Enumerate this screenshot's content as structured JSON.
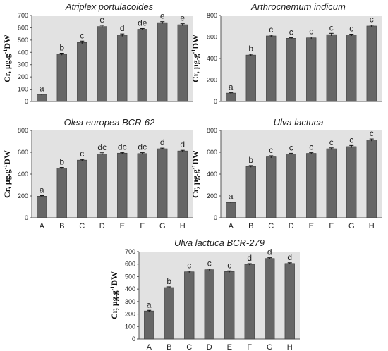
{
  "figure": {
    "ylabel_main": "Cr, μg.g",
    "ylabel_sup": "-1",
    "ylabel_tail": "DW"
  },
  "chart_data": [
    {
      "type": "bar",
      "title": "Atriplex portulacoides",
      "categories": [
        "A",
        "B",
        "C",
        "D",
        "E",
        "F",
        "G",
        "H"
      ],
      "values": [
        55,
        385,
        480,
        610,
        540,
        588,
        642,
        625
      ],
      "errors": [
        5,
        8,
        12,
        10,
        10,
        6,
        8,
        8
      ],
      "sig_labels": [
        "a",
        "b",
        "c",
        "e",
        "d",
        "de",
        "e",
        "e"
      ],
      "ylim": [
        0,
        700
      ],
      "yticks": [
        0,
        100,
        200,
        300,
        400,
        500,
        600,
        700
      ],
      "show_xticklabels": false,
      "color": "#666666",
      "plot_bg": "#e2e2e2"
    },
    {
      "type": "bar",
      "title": "Arthrocnemum indicum",
      "categories": [
        "A",
        "B",
        "C",
        "D",
        "E",
        "F",
        "G",
        "H"
      ],
      "values": [
        78,
        432,
        610,
        588,
        592,
        622,
        618,
        702
      ],
      "errors": [
        5,
        8,
        8,
        6,
        8,
        12,
        8,
        8
      ],
      "sig_labels": [
        "a",
        "b",
        "c",
        "c",
        "c",
        "c",
        "c",
        "c"
      ],
      "ylim": [
        0,
        800
      ],
      "yticks": [
        0,
        200,
        400,
        600,
        800
      ],
      "show_xticklabels": false,
      "color": "#666666",
      "plot_bg": "#e2e2e2"
    },
    {
      "type": "bar",
      "title": "Olea europea BCR-62",
      "categories": [
        "A",
        "B",
        "C",
        "D",
        "E",
        "F",
        "G",
        "H"
      ],
      "values": [
        198,
        455,
        528,
        585,
        592,
        588,
        632,
        612
      ],
      "errors": [
        5,
        6,
        6,
        10,
        6,
        8,
        6,
        6
      ],
      "sig_labels": [
        "a",
        "b",
        "c",
        "dc",
        "dc",
        "dc",
        "d",
        "d"
      ],
      "ylim": [
        0,
        800
      ],
      "yticks": [
        0,
        200,
        400,
        600,
        800
      ],
      "show_xticklabels": true,
      "color": "#666666",
      "plot_bg": "#e2e2e2"
    },
    {
      "type": "bar",
      "title": "Ulva lactuca",
      "categories": [
        "A",
        "B",
        "C",
        "D",
        "E",
        "F",
        "G",
        "H"
      ],
      "values": [
        140,
        470,
        558,
        585,
        590,
        632,
        652,
        712
      ],
      "errors": [
        5,
        8,
        10,
        6,
        6,
        8,
        10,
        10
      ],
      "sig_labels": [
        "a",
        "b",
        "c",
        "c",
        "c",
        "c",
        "c",
        "c"
      ],
      "ylim": [
        0,
        800
      ],
      "yticks": [
        0,
        200,
        400,
        600,
        800
      ],
      "show_xticklabels": true,
      "color": "#666666",
      "plot_bg": "#e2e2e2"
    },
    {
      "type": "bar",
      "title": "Ulva lactuca BCR-279",
      "categories": [
        "A",
        "B",
        "C",
        "D",
        "E",
        "F",
        "G",
        "H"
      ],
      "values": [
        225,
        412,
        538,
        555,
        540,
        598,
        645,
        605
      ],
      "errors": [
        5,
        6,
        6,
        6,
        6,
        6,
        6,
        6
      ],
      "sig_labels": [
        "a",
        "b",
        "c",
        "c",
        "c",
        "d",
        "d",
        "d"
      ],
      "ylim": [
        0,
        700
      ],
      "yticks": [
        0,
        100,
        200,
        300,
        400,
        500,
        600,
        700
      ],
      "show_xticklabels": true,
      "color": "#666666",
      "plot_bg": "#e2e2e2"
    }
  ]
}
